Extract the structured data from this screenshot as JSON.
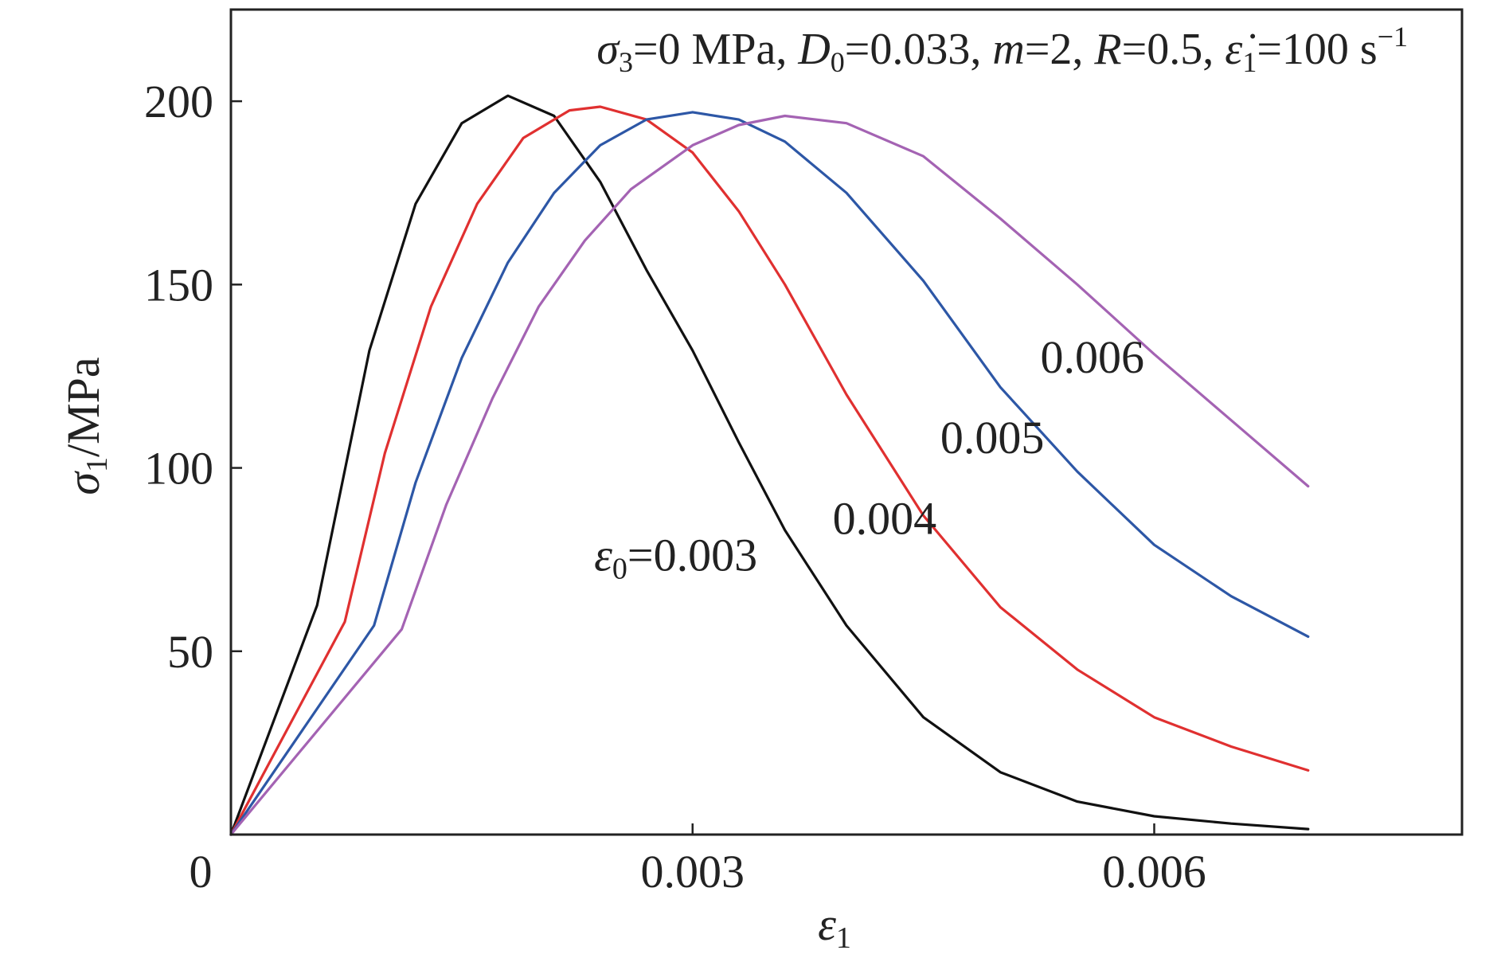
{
  "chart_data": {
    "type": "line",
    "title": "",
    "annotation": {
      "sigma3": "σ",
      "sigma3_sub": "3",
      "sigma3_val": "=0 MPa, ",
      "D0": "D",
      "D0_sub": "0",
      "D0_val": "=0.033, ",
      "m": "m",
      "m_val": "=2, ",
      "R": "R",
      "R_val": "=0.5, ",
      "rate": "ε̇",
      "rate_sub": "1",
      "rate_val": "=100 s",
      "rate_exp": "−1"
    },
    "xlabel": "ε",
    "xlabel_sub": "1",
    "ylabel_sym": "σ",
    "ylabel_sub": "1",
    "ylabel_unit": "/MPa",
    "xlim": [
      0,
      0.008
    ],
    "ylim": [
      0,
      225
    ],
    "xticks": [
      0,
      0.003,
      0.006
    ],
    "xtick_labels": [
      "0",
      "0.003",
      "0.006"
    ],
    "yticks": [
      50,
      100,
      150,
      200
    ],
    "ytick_labels": [
      "50",
      "100",
      "150",
      "200"
    ],
    "grid": false,
    "series": [
      {
        "name": "ε0=0.003",
        "label_prefix": "ε",
        "label_sub": "0",
        "label_value": "=0.003",
        "color": "#111111",
        "points": [
          [
            0,
            0
          ],
          [
            0.00056,
            62.5
          ],
          [
            0.0009,
            132
          ],
          [
            0.0012,
            172
          ],
          [
            0.0015,
            194
          ],
          [
            0.0018,
            201.5
          ],
          [
            0.0021,
            196
          ],
          [
            0.0024,
            178
          ],
          [
            0.0027,
            154
          ],
          [
            0.003,
            132
          ],
          [
            0.0033,
            107
          ],
          [
            0.0036,
            83
          ],
          [
            0.004,
            57
          ],
          [
            0.0045,
            32
          ],
          [
            0.005,
            17
          ],
          [
            0.0055,
            9
          ],
          [
            0.006,
            5
          ],
          [
            0.0065,
            3
          ],
          [
            0.007,
            1.5
          ]
        ]
      },
      {
        "name": "0.004",
        "label_prefix": "",
        "label_sub": "",
        "label_value": "0.004",
        "color": "#e03030",
        "points": [
          [
            0,
            0
          ],
          [
            0.00074,
            58
          ],
          [
            0.001,
            104
          ],
          [
            0.0013,
            144
          ],
          [
            0.0016,
            172
          ],
          [
            0.0019,
            190
          ],
          [
            0.0022,
            197.5
          ],
          [
            0.0024,
            198.5
          ],
          [
            0.0027,
            195
          ],
          [
            0.003,
            186
          ],
          [
            0.0033,
            170
          ],
          [
            0.0036,
            150
          ],
          [
            0.004,
            120
          ],
          [
            0.0045,
            87
          ],
          [
            0.005,
            62
          ],
          [
            0.0055,
            45
          ],
          [
            0.006,
            32
          ],
          [
            0.0065,
            24
          ],
          [
            0.007,
            17.5
          ]
        ]
      },
      {
        "name": "0.005",
        "label_prefix": "",
        "label_sub": "",
        "label_value": "0.005",
        "color": "#2d57a6",
        "points": [
          [
            0,
            0
          ],
          [
            0.00093,
            57
          ],
          [
            0.0012,
            96
          ],
          [
            0.0015,
            130
          ],
          [
            0.0018,
            156
          ],
          [
            0.0021,
            175
          ],
          [
            0.0024,
            188
          ],
          [
            0.0027,
            195
          ],
          [
            0.003,
            197
          ],
          [
            0.0033,
            195
          ],
          [
            0.0036,
            189
          ],
          [
            0.004,
            175
          ],
          [
            0.0045,
            151
          ],
          [
            0.005,
            122
          ],
          [
            0.0055,
            99
          ],
          [
            0.006,
            79
          ],
          [
            0.0065,
            65
          ],
          [
            0.007,
            54
          ]
        ]
      },
      {
        "name": "0.006",
        "label_prefix": "",
        "label_sub": "",
        "label_value": "0.006",
        "color": "#a463b3",
        "points": [
          [
            0,
            0
          ],
          [
            0.00111,
            56
          ],
          [
            0.0014,
            90
          ],
          [
            0.0017,
            119
          ],
          [
            0.002,
            144
          ],
          [
            0.0023,
            162
          ],
          [
            0.0026,
            176
          ],
          [
            0.003,
            188
          ],
          [
            0.0033,
            193.5
          ],
          [
            0.0036,
            196
          ],
          [
            0.004,
            194
          ],
          [
            0.0045,
            185
          ],
          [
            0.005,
            168
          ],
          [
            0.0055,
            150
          ],
          [
            0.006,
            131
          ],
          [
            0.0065,
            113
          ],
          [
            0.007,
            95
          ]
        ]
      }
    ]
  }
}
